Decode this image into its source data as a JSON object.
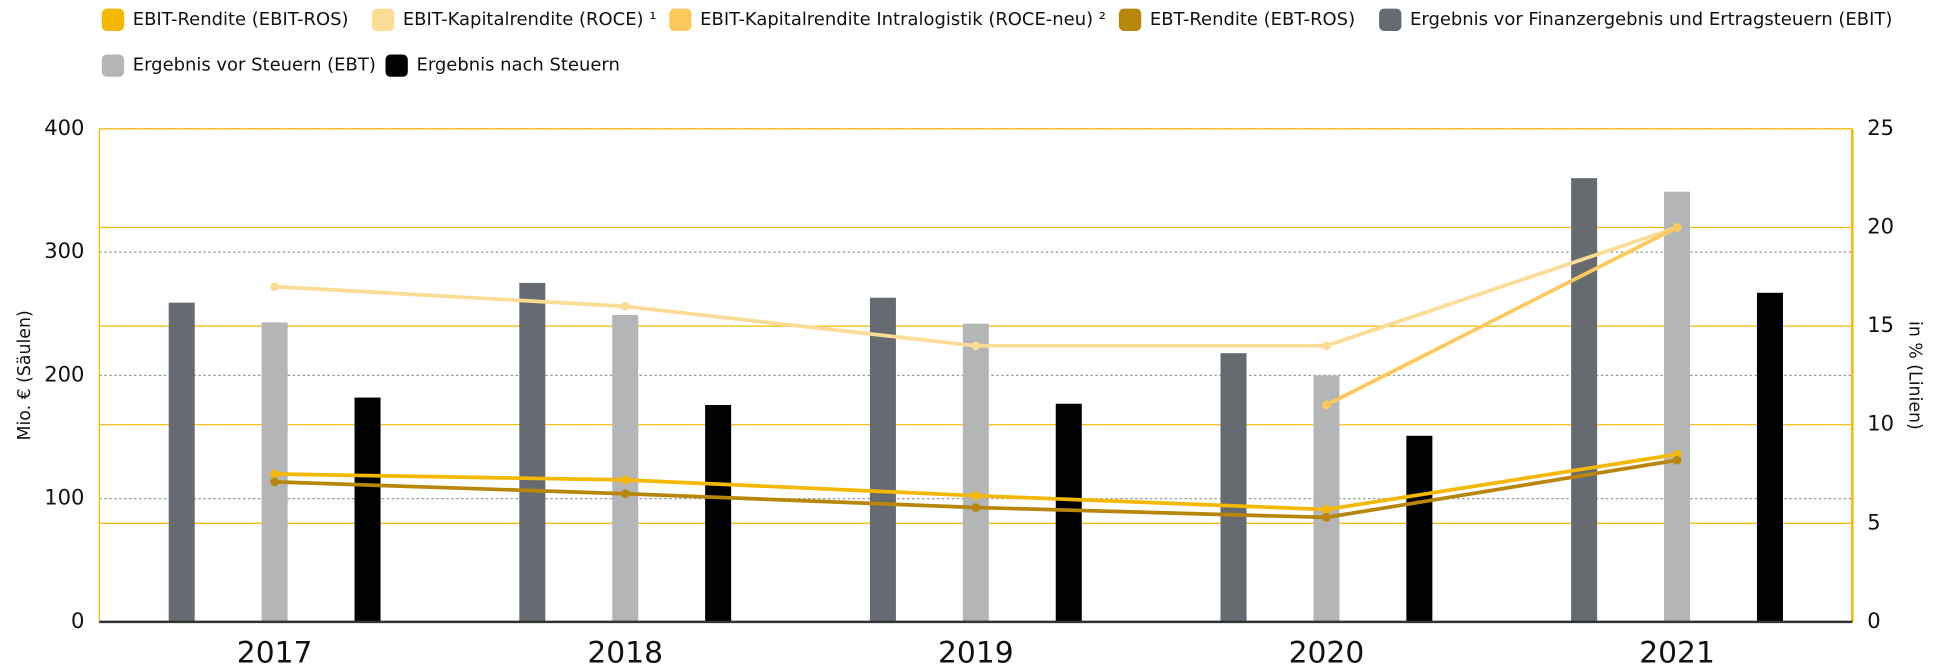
{
  "chart_data": {
    "type": "bar",
    "y_label": "Mio. € (Säulen)",
    "y2_label": "in % (Linien)",
    "categories": [
      "2017",
      "2018",
      "2019",
      "2020",
      "2021"
    ],
    "ylim": [
      0,
      400
    ],
    "yticks": [
      0,
      100,
      200,
      300,
      400
    ],
    "y2lim": [
      0,
      25
    ],
    "y2ticks": [
      0,
      5,
      10,
      15,
      20,
      25
    ],
    "series": [
      {
        "name": "EBIT-Rendite (EBIT-ROS)",
        "color": "#f5b800",
        "type": "line",
        "axis": "y2",
        "values": [
          7.5,
          7.2,
          6.4,
          5.7,
          8.5
        ]
      },
      {
        "name": "EBIT-Kapitalrendite (ROCE) ¹",
        "color": "#fcdc94",
        "type": "line",
        "axis": "y2",
        "values": [
          17,
          16,
          14,
          14,
          20
        ]
      },
      {
        "name": "EBIT-Kapitalrendite Intralogistik (ROCE-neu) ²",
        "color": "#fdc85c",
        "type": "line",
        "axis": "y2",
        "values": [
          null,
          null,
          null,
          11,
          20
        ]
      },
      {
        "name": "EBT-Rendite (EBT-ROS)",
        "color": "#b8860b",
        "type": "line",
        "axis": "y2",
        "values": [
          7.1,
          6.5,
          5.8,
          5.3,
          8.2
        ]
      },
      {
        "name": "Ergebnis vor Finanzergebnis und Ertragsteuern (EBIT)",
        "color": "#656b70",
        "type": "bar",
        "values": [
          259,
          275,
          263,
          218,
          360
        ]
      },
      {
        "name": "Ergebnis vor Steuern (EBT)",
        "color": "#b3b5b7",
        "type": "bar",
        "values": [
          243,
          249,
          242,
          200,
          349
        ]
      },
      {
        "name": "Ergebnis nach Steuern",
        "color": "#000000",
        "type": "bar",
        "values": [
          182,
          176,
          177,
          151,
          267
        ]
      }
    ]
  }
}
